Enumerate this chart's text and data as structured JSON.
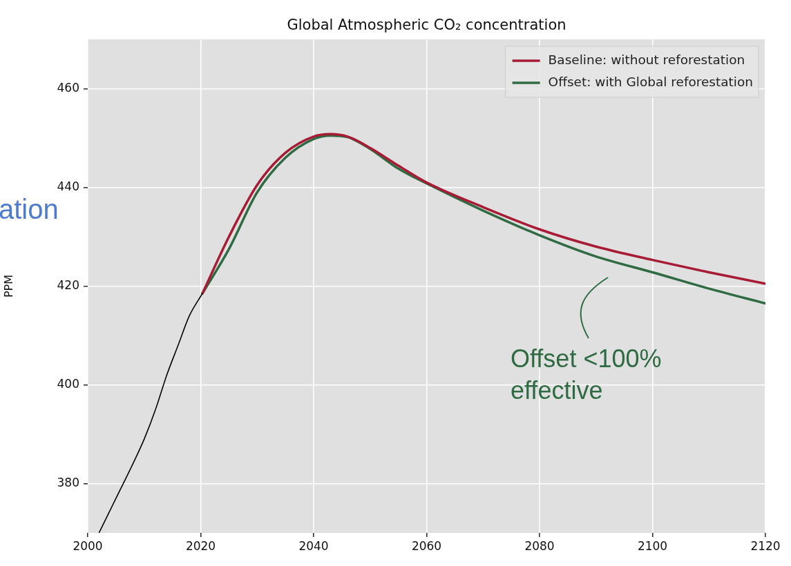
{
  "chart_data": {
    "type": "line",
    "title": "Global Atmospheric CO₂ concentration",
    "ylabel": "PPM",
    "xlim": [
      2000,
      2120
    ],
    "xticks": [
      2000,
      2020,
      2040,
      2060,
      2080,
      2100,
      2120
    ],
    "ylim": [
      370,
      470
    ],
    "yticks": [
      380,
      400,
      420,
      440,
      460
    ],
    "grid": true,
    "legend": "top right",
    "marker": "none",
    "line_style": "solid",
    "annotations": [
      "ation",
      "Offset <100%\neffective"
    ],
    "series": [
      {
        "color": "#000000",
        "x": [
          2002,
          2005,
          2008,
          2010,
          2012,
          2014,
          2016,
          2018,
          2020.3
        ],
        "values": [
          370,
          377,
          384,
          389,
          395,
          402,
          408,
          414,
          418.5
        ]
      },
      {
        "name": "Baseline: without reforestation",
        "color": "#a71b34",
        "x": [
          2020.3,
          2025,
          2030,
          2035,
          2040,
          2043,
          2046,
          2050,
          2055,
          2060,
          2070,
          2080,
          2090,
          2100,
          2110,
          2120
        ],
        "values": [
          418.5,
          430,
          440.5,
          447,
          450.3,
          450.8,
          450.3,
          448,
          444.4,
          441,
          436,
          431.5,
          428,
          425.3,
          422.8,
          420.5
        ]
      },
      {
        "name": "Offset: with Global reforestation",
        "color": "#2e6b42",
        "x": [
          2020.3,
          2025,
          2030,
          2035,
          2040,
          2043,
          2046,
          2050,
          2055,
          2060,
          2070,
          2080,
          2090,
          2100,
          2110,
          2120
        ],
        "values": [
          418.5,
          427.5,
          439,
          446,
          449.8,
          450.5,
          450.2,
          447.8,
          443.8,
          440.8,
          435.3,
          430.3,
          426,
          422.8,
          419.5,
          416.5
        ]
      }
    ]
  }
}
